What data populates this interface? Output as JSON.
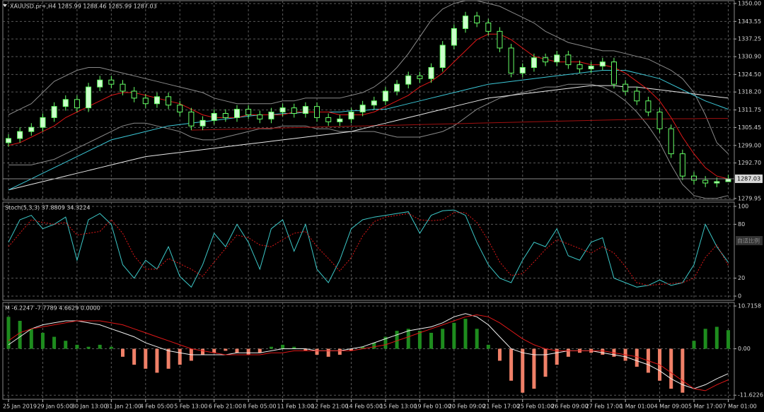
{
  "chart_data": [
    {
      "type": "candlestick",
      "title": "XAUUSD.pr+,H4  1285.99 1288.46 1285.99 1287.03",
      "categories": [
        "25 Jan 2019",
        null,
        null,
        "29 Jan 05:00",
        null,
        null,
        "30 Jan 13:00",
        null,
        null,
        "31 Jan 21:00",
        null,
        null,
        "4 Feb 05:00",
        null,
        null,
        "5 Feb 13:00",
        null,
        null,
        "6 Feb 21:00",
        null,
        null,
        "8 Feb 05:00",
        null,
        null,
        "11 Feb 13:00",
        null,
        null,
        "12 Feb 21:00",
        null,
        null,
        "14 Feb 05:00",
        null,
        null,
        "15 Feb 13:00",
        null,
        null,
        "19 Feb 01:00",
        null,
        null,
        "20 Feb 09:00",
        null,
        null,
        "21 Feb 17:00",
        null,
        null,
        "25 Feb 01:00",
        null,
        null,
        "26 Feb 09:00",
        null,
        null,
        "27 Feb 17:00",
        null,
        null,
        "1 Mar 01:00",
        null,
        null,
        "4 Mar 09:00",
        null,
        null,
        "5 Mar 17:00",
        null,
        null,
        "7 Mar 01:00"
      ],
      "open": [
        1300.0,
        1301.5,
        1304.0,
        1305.5,
        1309.0,
        1313.0,
        1315.5,
        1312.5,
        1320.0,
        1322.5,
        1321.0,
        1318.5,
        1316.0,
        1314.0,
        1316.5,
        1313.5,
        1311.0,
        1306.0,
        1308.0,
        1310.5,
        1309.0,
        1312.0,
        1310.0,
        1308.5,
        1311.0,
        1312.5,
        1310.5,
        1313.0,
        1309.0,
        1307.5,
        1308.5,
        1311.0,
        1313.5,
        1315.0,
        1318.5,
        1321.0,
        1324.0,
        1323.0,
        1327.0,
        1335.0,
        1341.0,
        1345.5,
        1343.0,
        1340.0,
        1334.0,
        1325.0,
        1327.0,
        1330.5,
        1329.0,
        1331.5,
        1328.0,
        1326.5,
        1327.5,
        1329.0,
        1321.0,
        1318.5,
        1315.0,
        1311.0,
        1305.0,
        1296.0,
        1288.0,
        1286.5,
        1285.5,
        1285.99
      ],
      "high": [
        1303.0,
        1305.5,
        1307.0,
        1310.5,
        1314.5,
        1317.0,
        1317.0,
        1321.5,
        1324.0,
        1324.0,
        1322.5,
        1320.0,
        1317.5,
        1318.0,
        1318.0,
        1315.0,
        1312.5,
        1309.5,
        1312.0,
        1312.0,
        1313.5,
        1313.5,
        1311.5,
        1312.5,
        1314.0,
        1314.0,
        1314.5,
        1314.5,
        1310.5,
        1310.0,
        1312.5,
        1315.0,
        1316.5,
        1320.0,
        1322.5,
        1325.5,
        1325.5,
        1328.5,
        1336.5,
        1342.5,
        1347.0,
        1347.0,
        1344.5,
        1341.5,
        1335.5,
        1328.5,
        1332.0,
        1332.0,
        1333.0,
        1333.0,
        1329.5,
        1329.0,
        1330.5,
        1330.5,
        1322.5,
        1320.0,
        1316.5,
        1312.5,
        1306.5,
        1297.5,
        1289.5,
        1288.0,
        1287.5,
        1288.46
      ],
      "low": [
        1298.5,
        1300.0,
        1302.5,
        1304.0,
        1307.5,
        1311.5,
        1311.0,
        1311.0,
        1318.5,
        1319.5,
        1317.0,
        1314.5,
        1312.5,
        1312.5,
        1312.0,
        1309.5,
        1304.5,
        1304.5,
        1306.5,
        1307.5,
        1307.5,
        1308.5,
        1307.0,
        1307.0,
        1309.5,
        1309.0,
        1309.0,
        1307.5,
        1306.0,
        1306.0,
        1307.0,
        1309.5,
        1312.0,
        1313.5,
        1317.0,
        1319.5,
        1321.5,
        1321.5,
        1325.5,
        1333.5,
        1339.5,
        1341.5,
        1338.5,
        1332.5,
        1323.5,
        1323.5,
        1325.5,
        1327.5,
        1327.5,
        1326.5,
        1325.0,
        1325.0,
        1326.0,
        1319.5,
        1317.0,
        1313.5,
        1309.5,
        1303.5,
        1294.5,
        1286.5,
        1285.0,
        1284.0,
        1284.0,
        1285.99
      ],
      "close": [
        1301.5,
        1304.0,
        1305.5,
        1309.0,
        1313.0,
        1315.5,
        1312.5,
        1320.0,
        1322.5,
        1321.0,
        1318.5,
        1316.0,
        1314.0,
        1316.5,
        1313.5,
        1311.0,
        1306.0,
        1308.0,
        1310.5,
        1309.0,
        1312.0,
        1310.0,
        1308.5,
        1311.0,
        1312.5,
        1310.5,
        1313.0,
        1309.0,
        1307.5,
        1308.5,
        1311.0,
        1313.5,
        1315.0,
        1318.5,
        1321.0,
        1324.0,
        1323.0,
        1327.0,
        1335.0,
        1341.0,
        1345.5,
        1343.0,
        1340.0,
        1334.0,
        1325.0,
        1327.0,
        1330.5,
        1329.0,
        1331.5,
        1328.0,
        1326.5,
        1327.5,
        1329.0,
        1321.0,
        1318.5,
        1315.0,
        1311.0,
        1305.0,
        1296.0,
        1288.0,
        1286.5,
        1285.5,
        1286.0,
        1287.03
      ],
      "up_color": "#ccffcc",
      "down_color": "#000000",
      "wick_color": "#66ff66",
      "series": [
        {
          "color": "#8a8a8a",
          "values": [
            1310,
            1312,
            1314,
            1318,
            1322,
            1324,
            1326,
            1327,
            1327,
            1326,
            1325,
            1324,
            1323,
            1322,
            1321,
            1320,
            1319,
            1318,
            1316,
            1315,
            1314,
            1314,
            1314,
            1314,
            1315,
            1315,
            1316,
            1316,
            1316,
            1316,
            1317,
            1318,
            1320,
            1323,
            1327,
            1332,
            1338,
            1344,
            1348,
            1350,
            1351,
            1351,
            1350,
            1349,
            1347,
            1345,
            1343,
            1340,
            1338,
            1336,
            1335,
            1334,
            1333,
            1333,
            1332,
            1331,
            1330,
            1328,
            1326,
            1323,
            1318,
            1310,
            1300,
            1296
          ]
        },
        {
          "color": "#8a8a8a",
          "values": [
            1292,
            1292,
            1292,
            1293,
            1294,
            1296,
            1298,
            1300,
            1302,
            1304,
            1306,
            1307,
            1307,
            1306,
            1305,
            1304,
            1302,
            1301,
            1301,
            1302,
            1303,
            1304,
            1305,
            1305,
            1306,
            1306,
            1306,
            1305,
            1305,
            1304,
            1304,
            1304,
            1304,
            1303,
            1302,
            1302,
            1302,
            1303,
            1304,
            1306,
            1309,
            1312,
            1314,
            1316,
            1317,
            1318,
            1319,
            1320,
            1320,
            1321,
            1321,
            1321,
            1320,
            1318,
            1315,
            1311,
            1306,
            1300,
            1292,
            1285,
            1281,
            1280,
            1280,
            1281
          ]
        },
        {
          "color": "#a01010",
          "values": [
            null,
            null,
            null,
            null,
            null,
            null,
            null,
            null,
            null,
            null,
            null,
            null,
            null,
            null,
            null,
            null,
            1304.5,
            1304.6,
            1304.7,
            1304.8,
            1304.9,
            1305,
            1305.1,
            1305.2,
            1305.3,
            1305.4,
            1305.5,
            1305.6,
            1305.7,
            1305.8,
            1305.9,
            1306,
            1306.1,
            1306.2,
            1306.3,
            1306.4,
            1306.5,
            1306.6,
            1306.7,
            1306.8,
            1306.9,
            1307,
            1307.1,
            1307.2,
            1307.3,
            1307.4,
            1307.5,
            1307.6,
            1307.7,
            1307.8,
            1307.9,
            1308,
            1308.1,
            1308.2,
            1308.3,
            1308.4,
            1308.5,
            1308.5,
            1308.6,
            1308.6,
            1308.6,
            1308.7,
            1308.7,
            1308.7
          ]
        },
        {
          "color": "#e8e8e8",
          "values": [
            1283,
            1284,
            1285,
            1286,
            1287,
            1288,
            1289,
            1290,
            1291,
            1292,
            1293,
            1294,
            1295,
            1295.5,
            1296,
            1296.5,
            1297,
            1297.5,
            1298,
            1298.5,
            1299,
            1299.5,
            1300,
            1300.5,
            1301,
            1301.5,
            1302,
            1302.5,
            1303,
            1303.5,
            1304,
            1305,
            1306,
            1307,
            1308,
            1309,
            1310,
            1311,
            1312,
            1313,
            1314,
            1315,
            1316,
            1316.5,
            1317,
            1317.5,
            1318,
            1318.5,
            1319,
            1319.5,
            1320,
            1320.5,
            1320.5,
            1320.5,
            1320,
            1320,
            1319.5,
            1319,
            1318.5,
            1318,
            1317.5,
            1317,
            1316.5,
            1316
          ]
        },
        {
          "color": "#3cc8d8",
          "values": [
            1283,
            1285,
            1287,
            1289,
            1291,
            1293,
            1295,
            1297,
            1299,
            1301,
            1302,
            1303,
            1304,
            1305,
            1306,
            1306.5,
            1307,
            1307.5,
            1308,
            1308.5,
            1309,
            1309.5,
            1310,
            1310,
            1310.5,
            1310.5,
            1311,
            1311,
            1311,
            1311,
            1311.5,
            1311.5,
            1312,
            1312,
            1313,
            1314,
            1315,
            1316,
            1317,
            1318,
            1319,
            1320,
            1321,
            1321.5,
            1322,
            1322.5,
            1323,
            1323.5,
            1324,
            1324.5,
            1325,
            1325.5,
            1326,
            1326,
            1326,
            1325,
            1324,
            1323,
            1321,
            1319,
            1317,
            1315,
            1313.5,
            1312
          ]
        },
        {
          "color": "#e01818",
          "values": [
            1299,
            1300,
            1302,
            1304,
            1306,
            1309,
            1311,
            1313,
            1315,
            1317,
            1318,
            1318,
            1317,
            1316,
            1315,
            1314,
            1312,
            1310,
            1309,
            1309,
            1309,
            1310,
            1310,
            1310,
            1310,
            1311,
            1311,
            1311,
            1311,
            1310,
            1310,
            1310,
            1311,
            1313,
            1315,
            1317,
            1320,
            1322,
            1325,
            1329,
            1333,
            1337,
            1339,
            1339,
            1337,
            1334,
            1331,
            1330,
            1329,
            1329,
            1329,
            1328,
            1328,
            1327,
            1325,
            1322,
            1319,
            1315,
            1309,
            1302,
            1296,
            1291,
            1288,
            1287
          ]
        }
      ],
      "ylim": [
        1279.4,
        1351.0
      ],
      "yticks": [
        {
          "value": 1350,
          "label": "1350.00"
        },
        1343.55,
        1337.25,
        {
          "value": 1330.9,
          "label": "1330.90"
        },
        {
          "value": 1324.5,
          "label": "1324.50"
        },
        {
          "value": 1318.2,
          "label": "1318.20"
        },
        1311.75,
        1305.45,
        {
          "value": 1299,
          "label": "1299.00"
        },
        {
          "value": 1292.7,
          "label": "1292.70"
        },
        1279.95
      ],
      "grid": true
    },
    {
      "type": "line",
      "title": "Stoch(5,3,3) 37.8809 34.3224",
      "annotation": "自适比例",
      "series": [
        {
          "color": "#3cc8c8",
          "values": [
            60,
            85,
            90,
            75,
            80,
            88,
            40,
            85,
            92,
            80,
            35,
            20,
            40,
            30,
            55,
            22,
            10,
            35,
            70,
            55,
            80,
            60,
            30,
            75,
            85,
            50,
            80,
            30,
            15,
            40,
            75,
            85,
            88,
            90,
            92,
            94,
            70,
            90,
            95,
            96,
            90,
            60,
            35,
            20,
            15,
            40,
            60,
            55,
            75,
            45,
            40,
            60,
            65,
            20,
            15,
            10,
            12,
            18,
            12,
            15,
            35,
            80,
            55,
            37.8809
          ]
        },
        {
          "color": "#e01818",
          "dashed": true,
          "values": [
            55,
            70,
            85,
            82,
            80,
            82,
            68,
            70,
            72,
            85,
            70,
            45,
            30,
            30,
            42,
            36,
            30,
            22,
            38,
            53,
            68,
            65,
            57,
            55,
            63,
            70,
            72,
            55,
            42,
            28,
            43,
            67,
            83,
            88,
            90,
            92,
            85,
            84,
            85,
            93,
            93,
            82,
            62,
            38,
            23,
            25,
            38,
            52,
            63,
            58,
            53,
            48,
            55,
            48,
            33,
            15,
            12,
            13,
            14,
            15,
            20,
            43,
            57,
            34.3224
          ]
        }
      ],
      "ylim": [
        -4.7,
        104.7
      ],
      "yticks": [
        100,
        80,
        20,
        0
      ],
      "grid": true
    },
    {
      "type": "macd",
      "title": "M -6.2247 -7.7789 4.6629 0.0000",
      "histogram": {
        "color_positive": "#1e8c1e",
        "color_negative": "#f08068",
        "values": [
          8,
          7,
          5,
          4,
          3,
          2,
          1,
          0.5,
          1,
          0.5,
          -2,
          -4,
          -5,
          -6,
          -5,
          -4,
          -3,
          -1.5,
          -1,
          -0.5,
          -1,
          -1.5,
          -1,
          0.5,
          1,
          0.5,
          -0.5,
          -1.5,
          -2,
          -1.5,
          -0.5,
          0.5,
          1.5,
          3,
          4.5,
          5,
          4.5,
          4,
          5,
          6.5,
          7.5,
          5,
          1,
          -3,
          -8,
          -11,
          -10,
          -7,
          -4,
          -2,
          -1,
          -1,
          -1.5,
          -2,
          -3,
          -4.5,
          -6,
          -8,
          -10,
          -11,
          2,
          5,
          5.5,
          4.6629
        ]
      },
      "series": [
        {
          "color": "#f0f0f0",
          "values": [
            1,
            3,
            5,
            6,
            6.5,
            7,
            7,
            6.5,
            6,
            5,
            4,
            3,
            1.5,
            0.5,
            -0.5,
            -1,
            -1.5,
            -1.5,
            -1.5,
            -1.5,
            -1,
            -1,
            -1,
            -0.5,
            0,
            0,
            0,
            -0.5,
            -0.5,
            -0.5,
            0,
            0.5,
            1.5,
            2.5,
            3.5,
            4.5,
            5,
            5.5,
            6.5,
            8,
            8.8,
            8,
            6,
            3,
            0,
            -1,
            -1.5,
            -1.5,
            -1,
            -0.5,
            -0.5,
            -0.5,
            -1,
            -1.5,
            -2,
            -3,
            -4,
            -5.5,
            -7.5,
            -9,
            -10,
            -9,
            -7.5,
            -6.2247
          ]
        },
        {
          "color": "#e01818",
          "values": [
            2,
            4,
            5,
            5.5,
            6,
            6.5,
            7,
            7,
            7,
            6.5,
            6,
            5,
            4,
            3,
            2,
            1,
            0,
            -0.5,
            -1,
            -1.5,
            -1.5,
            -1.5,
            -1.5,
            -1,
            -1,
            -0.5,
            -0.5,
            -0.5,
            -0.5,
            -0.5,
            -0.5,
            0,
            0.5,
            1,
            2,
            3,
            4,
            5,
            6,
            7,
            8,
            8.5,
            8,
            6.5,
            4.5,
            2.5,
            1,
            0,
            -0.5,
            -0.5,
            -0.5,
            -0.5,
            -0.5,
            -1,
            -1.5,
            -2,
            -3,
            -4,
            -6,
            -8,
            -10,
            -10.5,
            -9,
            -7.7789
          ]
        }
      ],
      "ylim": [
        -12.65,
        11.6
      ],
      "yticks": [
        10.7158,
        {
          "value": 0,
          "label": "0.00"
        },
        -11.6226
      ],
      "grid": true
    }
  ]
}
